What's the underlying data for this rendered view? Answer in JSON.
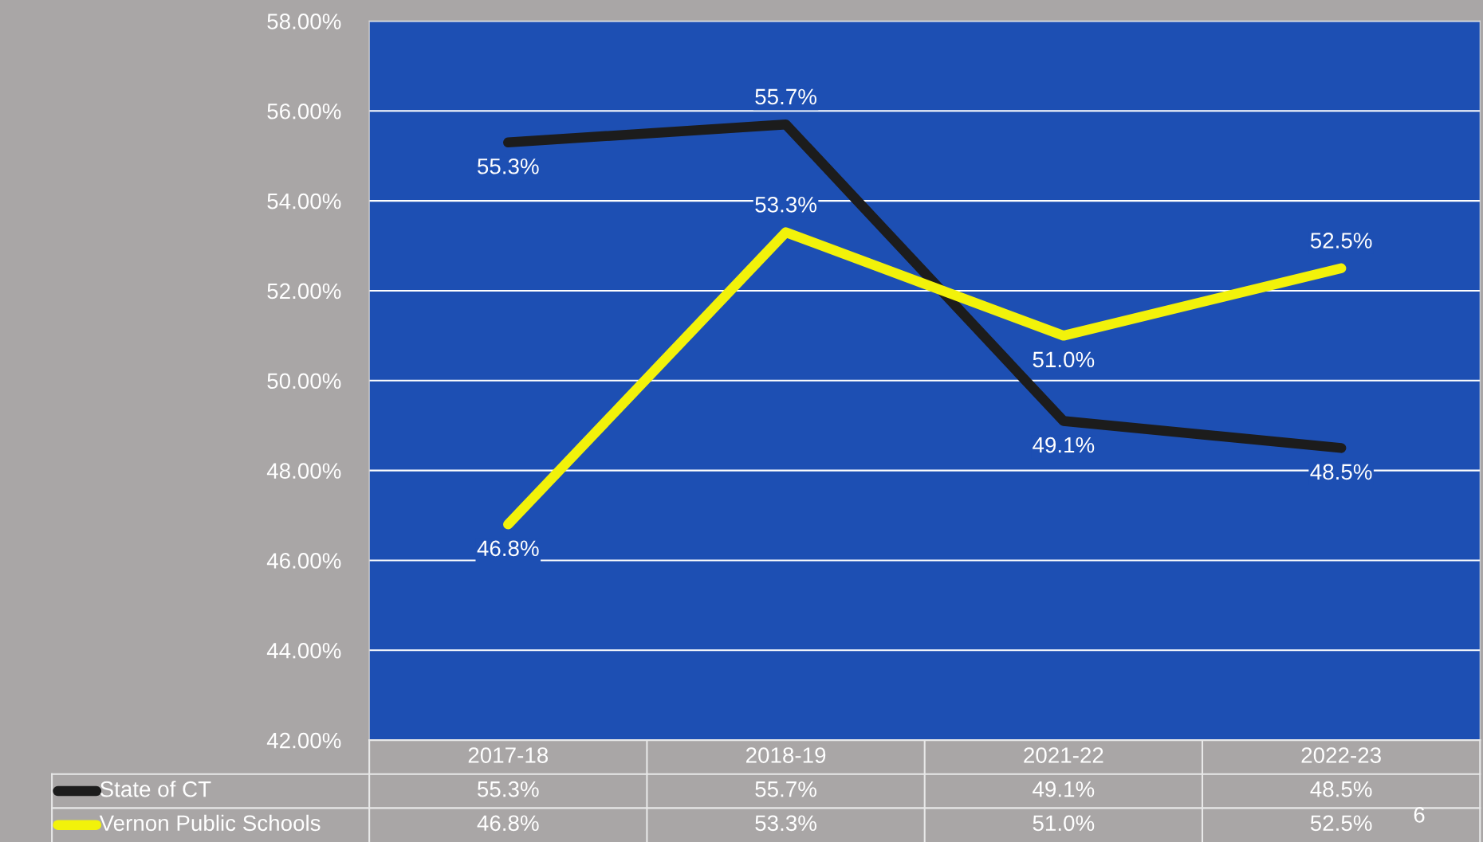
{
  "chart_data": {
    "type": "line",
    "categories": [
      "2017-18",
      "2018-19",
      "2021-22",
      "2022-23"
    ],
    "series": [
      {
        "name": "State of CT",
        "color": "#1c1c1c",
        "values": [
          55.3,
          55.7,
          49.1,
          48.5
        ],
        "value_labels": [
          "55.3%",
          "55.7%",
          "49.1%",
          "48.5%"
        ]
      },
      {
        "name": "Vernon Public Schools",
        "color": "#f2f20a",
        "values": [
          46.8,
          53.3,
          51.0,
          52.5
        ],
        "value_labels": [
          "46.8%",
          "53.3%",
          "51.0%",
          "52.5%"
        ]
      }
    ],
    "ylim": [
      42,
      58
    ],
    "yticks": [
      {
        "value": 42,
        "label": "42.00%"
      },
      {
        "value": 44,
        "label": "44.00%"
      },
      {
        "value": 46,
        "label": "46.00%"
      },
      {
        "value": 48,
        "label": "48.00%"
      },
      {
        "value": 50,
        "label": "50.00%"
      },
      {
        "value": 52,
        "label": "52.00%"
      },
      {
        "value": 54,
        "label": "54.00%"
      },
      {
        "value": 56,
        "label": "56.00%"
      },
      {
        "value": 58,
        "label": "58.00%"
      }
    ],
    "grid": "y",
    "legend": "bottom",
    "line_style": "solid",
    "annotations": [
      "6"
    ]
  }
}
